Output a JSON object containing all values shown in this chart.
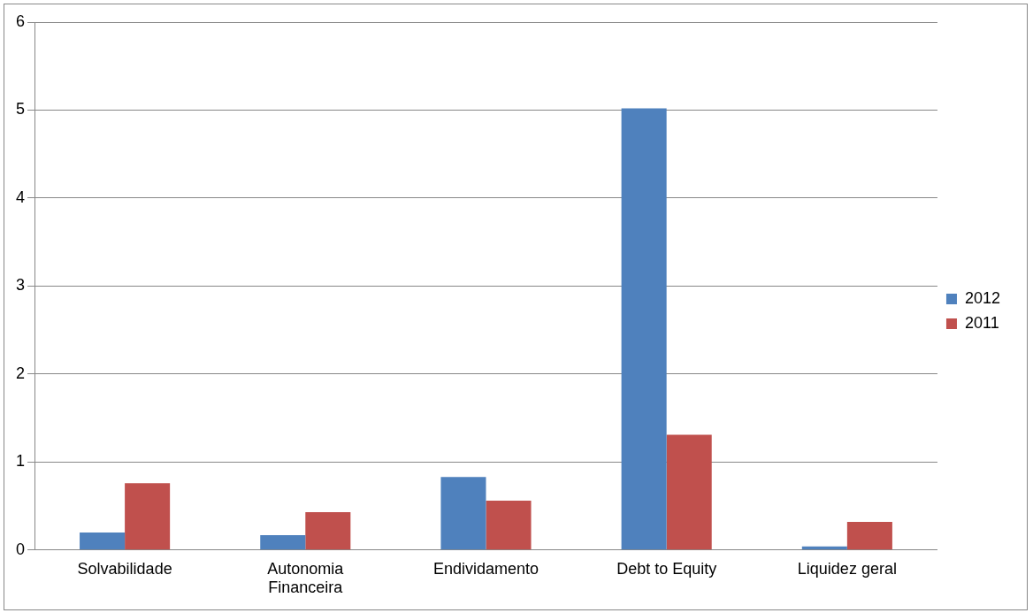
{
  "chart_data": {
    "type": "bar",
    "categories": [
      "Solvabilidade",
      "Autonomia Financeira",
      "Endividamento",
      "Debt to Equity",
      "Liquidez geral"
    ],
    "series": [
      {
        "name": "2012",
        "color": "#4f81bd",
        "values": [
          0.2,
          0.17,
          0.83,
          5.02,
          0.04
        ]
      },
      {
        "name": "2011",
        "color": "#c0504d",
        "values": [
          0.76,
          0.43,
          0.56,
          1.31,
          0.32
        ]
      }
    ],
    "ylim": [
      0,
      6
    ],
    "yticks": [
      0,
      1,
      2,
      3,
      4,
      5,
      6
    ],
    "grid": "y",
    "legend": "right"
  }
}
